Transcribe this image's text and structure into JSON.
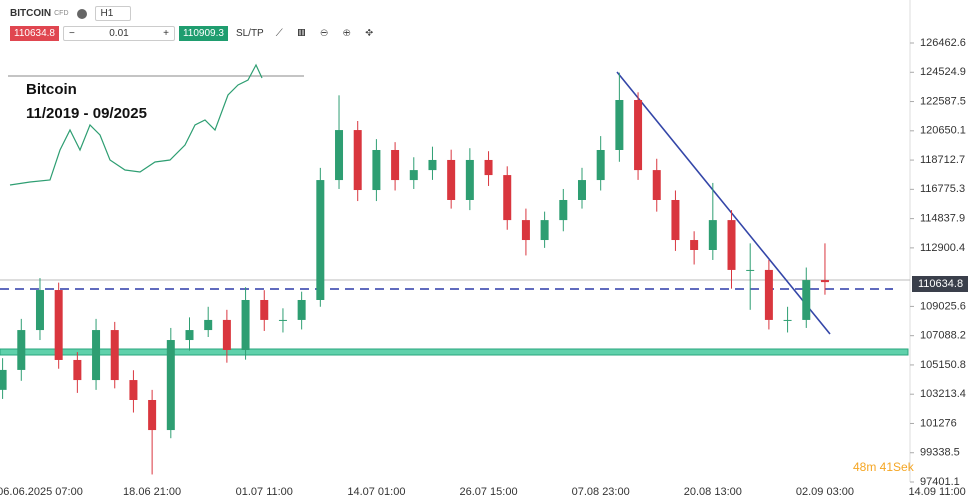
{
  "toolbar": {
    "symbol": "BITCOIN",
    "kind": "CFD",
    "timeframe": "H1",
    "sell": "110634.8",
    "quantity": "0.01",
    "buy": "110909.3",
    "sltp": "SL/TP"
  },
  "inset": {
    "title": "Bitcoin",
    "period": "11/2019 - 09/2025"
  },
  "countdown": "48m 41Sek",
  "chart_data": {
    "type": "candlestick",
    "categories": [
      null,
      null,
      "06.06.2025 07:00",
      null,
      null,
      null,
      null,
      null,
      "18.06 21:00",
      null,
      null,
      null,
      null,
      null,
      "01.07 11:00",
      null,
      null,
      null,
      null,
      null,
      "14.07 01:00",
      null,
      null,
      null,
      null,
      null,
      "26.07 15:00",
      null,
      null,
      null,
      null,
      null,
      "07.08 23:00",
      null,
      null,
      null,
      null,
      null,
      "20.08 13:00",
      null,
      null,
      null,
      null,
      null,
      "02.09 03:00",
      null,
      null,
      null,
      null,
      null,
      "14.09 11:00"
    ],
    "open": [
      103500,
      104820,
      107460,
      110110,
      105480,
      104150,
      107460,
      104150,
      102830,
      100840,
      106800,
      107460,
      108130,
      106140,
      109450,
      108130,
      108130,
      109450,
      117390,
      120700,
      116730,
      119380,
      117390,
      118050,
      118720,
      116070,
      118720,
      117720,
      114740,
      113420,
      114740,
      116070,
      117390,
      119380,
      122690,
      118050,
      116070,
      113420,
      112760,
      114740,
      111440,
      111440,
      108130,
      108130,
      110770,
      null,
      null,
      null,
      null,
      null,
      null
    ],
    "high": [
      105600,
      108200,
      110900,
      110600,
      106000,
      108200,
      108000,
      104800,
      103500,
      107600,
      108300,
      109000,
      108800,
      110300,
      110100,
      108900,
      110000,
      118200,
      123000,
      121300,
      120100,
      119900,
      118900,
      119600,
      119400,
      119500,
      119300,
      118300,
      115500,
      115300,
      116800,
      118200,
      120300,
      124500,
      123200,
      118800,
      116700,
      114000,
      117200,
      115400,
      113200,
      112100,
      109000,
      111600,
      113200,
      null,
      null,
      null,
      null,
      null,
      null
    ],
    "low": [
      102900,
      104100,
      106800,
      104900,
      103300,
      103500,
      103600,
      102000,
      97900,
      100300,
      106100,
      107000,
      105300,
      105500,
      107400,
      107300,
      107500,
      109000,
      116800,
      116000,
      116000,
      116700,
      116800,
      117400,
      115500,
      115400,
      117000,
      114100,
      112400,
      112900,
      114000,
      115500,
      116700,
      118600,
      117400,
      115300,
      112700,
      111800,
      112100,
      110200,
      108800,
      107500,
      107300,
      107600,
      109800,
      null,
      null,
      null,
      null,
      null,
      null
    ],
    "close": [
      104820,
      107460,
      110110,
      105480,
      104150,
      107460,
      104150,
      102830,
      100840,
      106800,
      107460,
      108130,
      106140,
      109450,
      108130,
      108130,
      109450,
      117390,
      120700,
      116730,
      119380,
      117390,
      118050,
      118720,
      116070,
      118720,
      117720,
      114740,
      113420,
      114740,
      116070,
      117390,
      119380,
      122690,
      118050,
      116070,
      113420,
      112760,
      114740,
      111440,
      111440,
      108130,
      108130,
      110770,
      110634.8,
      null,
      null,
      null,
      null,
      null,
      null
    ],
    "up_color": "#2e9e72",
    "down_color": "#d9363e",
    "ylim": [
      97401.1,
      129310
    ],
    "yticks": [
      126462.6,
      124524.9,
      122587.5,
      120650.1,
      118712.7,
      116775.3,
      114837.9,
      112900.4,
      109025.6,
      107088.2,
      105150.8,
      103213.4,
      101276.0,
      99338.5,
      97401.1
    ],
    "grid": false
  }
}
